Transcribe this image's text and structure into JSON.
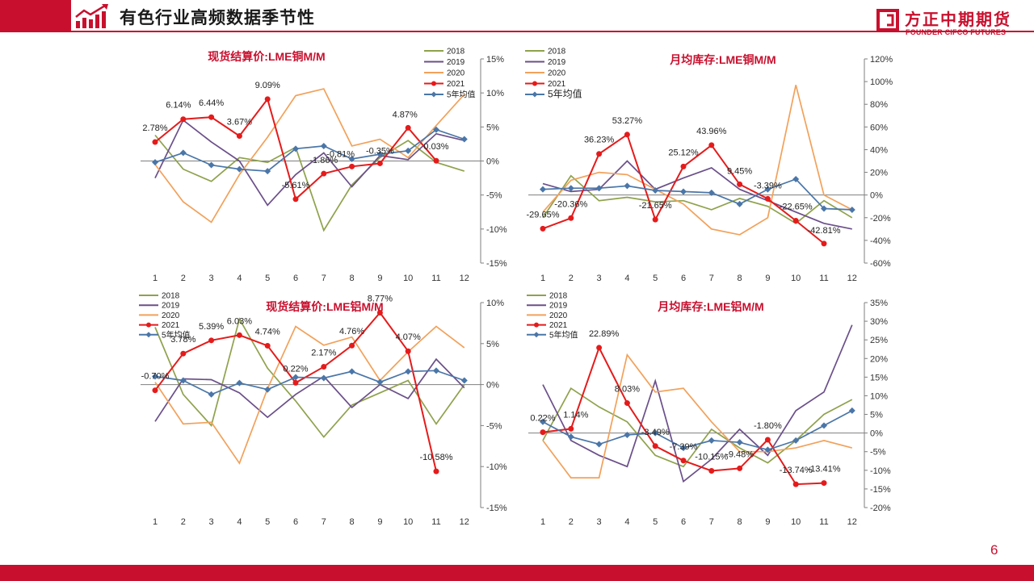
{
  "header": {
    "title": "有色行业高频数据季节性",
    "icon": "trend-arrow-icon"
  },
  "logo": {
    "name_cn": "方正中期期货",
    "name_en": "FOUNDER CIFCO FUTURES",
    "mark": "founder-logo-mark"
  },
  "page_number": "6",
  "colors": {
    "brand": "#c8102e",
    "y2018": "#8ea24c",
    "y2019": "#6b4f8a",
    "y2020": "#f2a15a",
    "y2021": "#e51b1b",
    "avg5": "#4a76a8"
  },
  "chart_data": [
    {
      "type": "line",
      "title": "现货结算价:LME铜M/M",
      "categories": [
        "1",
        "2",
        "3",
        "4",
        "5",
        "6",
        "7",
        "8",
        "9",
        "10",
        "11",
        "12"
      ],
      "ylim": [
        -15,
        15
      ],
      "yticks": [
        15,
        10,
        5,
        0,
        -5,
        -10,
        -15
      ],
      "yticks_text": [
        "15%",
        "10%",
        "5%",
        "0%",
        "-5%",
        "-10%",
        "-15%"
      ],
      "legend": [
        "2018",
        "2019",
        "2020",
        "2021",
        "5年均值"
      ],
      "series": [
        {
          "name": "2018",
          "values": [
            3.8,
            -1.2,
            -3.0,
            0.5,
            -0.2,
            2.0,
            -10.2,
            -3.5,
            0.5,
            3.0,
            -0.2,
            -1.5
          ]
        },
        {
          "name": "2019",
          "values": [
            -2.5,
            6.0,
            2.8,
            0.0,
            -6.5,
            -2.0,
            1.2,
            -3.8,
            0.8,
            0.2,
            4.0,
            3.0
          ]
        },
        {
          "name": "2020",
          "values": [
            -0.5,
            -6.0,
            -9.0,
            -2.0,
            3.5,
            9.6,
            10.6,
            2.2,
            3.2,
            0.5,
            5.2,
            9.8
          ]
        },
        {
          "name": "2021",
          "values": [
            2.78,
            6.14,
            6.44,
            3.67,
            9.09,
            -5.61,
            -1.86,
            -0.81,
            -0.35,
            4.87,
            0.03,
            null
          ]
        },
        {
          "name": "5年均值",
          "values": [
            -0.2,
            1.2,
            -0.6,
            -1.2,
            -1.5,
            1.8,
            2.2,
            0.3,
            1.0,
            1.5,
            4.6,
            3.2
          ]
        }
      ],
      "labels": [
        "2.78%",
        "6.14%",
        "6.44%",
        "3.67%",
        "9.09%",
        "-5.61%",
        "-1.86%",
        "-0.81%",
        "-0.35%",
        "4.87%",
        "0.03%"
      ]
    },
    {
      "type": "line",
      "title": "月均库存:LME铜M/M",
      "categories": [
        "1",
        "2",
        "3",
        "4",
        "5",
        "6",
        "7",
        "8",
        "9",
        "10",
        "11",
        "12"
      ],
      "ylim": [
        -60,
        120
      ],
      "yticks": [
        120,
        100,
        80,
        60,
        40,
        20,
        0,
        -20,
        -40,
        -60
      ],
      "yticks_text": [
        "120%",
        "100%",
        "80%",
        "60%",
        "40%",
        "20%",
        "0%",
        "-20%",
        "-40%",
        "-60%"
      ],
      "legend": [
        "2018",
        "2019",
        "2020",
        "2021",
        "5年均值"
      ],
      "series": [
        {
          "name": "2018",
          "values": [
            -20,
            17,
            -5,
            -2,
            -6,
            -5,
            -13,
            -3,
            -10,
            -25,
            -5,
            -20
          ]
        },
        {
          "name": "2019",
          "values": [
            10,
            3,
            5,
            30,
            5,
            15,
            24,
            5,
            -5,
            -15,
            -25,
            -30
          ]
        },
        {
          "name": "2020",
          "values": [
            -15,
            13,
            20,
            18,
            5,
            -8,
            -30,
            -35,
            -20,
            97,
            0,
            -13
          ]
        },
        {
          "name": "2021",
          "values": [
            -29.65,
            -20.36,
            36.23,
            53.27,
            -21.65,
            25.12,
            43.96,
            9.45,
            -3.39,
            -22.65,
            -42.81,
            null
          ]
        },
        {
          "name": "5年均值",
          "values": [
            5,
            6,
            6,
            8,
            4,
            3,
            2,
            -8,
            5,
            14,
            -12,
            -13
          ]
        }
      ],
      "labels": [
        "-29.65%",
        "-20.36%",
        "36.23%",
        "53.27%",
        "-21.65%",
        "25.12%",
        "43.96%",
        "9.45%",
        "-3.39%",
        "-22.65%",
        "-42.81%"
      ]
    },
    {
      "type": "line",
      "title": "现货结算价:LME铝M/M",
      "categories": [
        "1",
        "2",
        "3",
        "4",
        "5",
        "6",
        "7",
        "8",
        "9",
        "10",
        "11",
        "12"
      ],
      "ylim": [
        -15,
        10
      ],
      "yticks": [
        10,
        5,
        0,
        -5,
        -10,
        -15
      ],
      "yticks_text": [
        "10%",
        "5%",
        "0%",
        "-5%",
        "-10%",
        "-15%"
      ],
      "legend": [
        "2018",
        "2019",
        "2020",
        "2021",
        "5年均值"
      ],
      "series": [
        {
          "name": "2018",
          "values": [
            7.0,
            -1.2,
            -5.0,
            8.0,
            2.0,
            -2.0,
            -6.4,
            -2.5,
            -1.0,
            0.5,
            -4.8,
            0.0
          ]
        },
        {
          "name": "2019",
          "values": [
            -4.5,
            0.7,
            0.6,
            -1.0,
            -4.0,
            -1.2,
            1.0,
            -2.8,
            0.0,
            -1.7,
            3.1,
            -0.4
          ]
        },
        {
          "name": "2020",
          "values": [
            0.3,
            -4.8,
            -4.6,
            -9.6,
            -0.5,
            7.1,
            4.8,
            5.8,
            0.5,
            4.0,
            7.1,
            4.5
          ]
        },
        {
          "name": "2021",
          "values": [
            -0.7,
            3.78,
            5.39,
            6.03,
            4.74,
            0.22,
            2.17,
            4.76,
            8.77,
            4.07,
            -10.58,
            null
          ]
        },
        {
          "name": "5年均值",
          "values": [
            1.0,
            0.5,
            -1.2,
            0.2,
            -0.6,
            0.9,
            0.8,
            1.6,
            0.3,
            1.6,
            1.7,
            0.5
          ]
        }
      ],
      "labels": [
        "-0.70%",
        "3.78%",
        "5.39%",
        "6.03%",
        "4.74%",
        "0.22%",
        "2.17%",
        "4.76%",
        "8.77%",
        "4.07%",
        "-10.58%"
      ]
    },
    {
      "type": "line",
      "title": "月均库存:LME铝M/M",
      "categories": [
        "1",
        "2",
        "3",
        "4",
        "5",
        "6",
        "7",
        "8",
        "9",
        "10",
        "11",
        "12"
      ],
      "ylim": [
        -20,
        35
      ],
      "yticks": [
        35,
        30,
        25,
        20,
        15,
        10,
        5,
        0,
        -5,
        -10,
        -15,
        -20
      ],
      "yticks_text": [
        "35%",
        "30%",
        "25%",
        "20%",
        "15%",
        "10%",
        "5%",
        "0%",
        "-5%",
        "-10%",
        "-15%",
        "-20%"
      ],
      "legend": [
        "2018",
        "2019",
        "2020",
        "2021",
        "5年均值"
      ],
      "series": [
        {
          "name": "2018",
          "values": [
            -2,
            12,
            7,
            3,
            -6,
            -9,
            1,
            -4,
            -8,
            -2,
            5,
            9
          ]
        },
        {
          "name": "2019",
          "values": [
            13,
            -2,
            -6,
            -9,
            14,
            -13,
            -7,
            1,
            -6,
            6,
            11,
            29
          ]
        },
        {
          "name": "2020",
          "values": [
            -2,
            -12,
            -12,
            21,
            11,
            12,
            3,
            -5,
            -5,
            -4,
            -2,
            -4
          ]
        },
        {
          "name": "2021",
          "values": [
            0.22,
            1.14,
            22.89,
            8.03,
            -3.49,
            -7.39,
            -10.15,
            -9.48,
            -1.8,
            -13.74,
            -13.41,
            null
          ]
        },
        {
          "name": "5年均值",
          "values": [
            3,
            -1,
            -3,
            -0.5,
            0,
            -4,
            -2,
            -2.5,
            -4.5,
            -2,
            2,
            6
          ]
        }
      ],
      "labels": [
        "0.22%",
        "1.14%",
        "22.89%",
        "8.03%",
        "-3.49%",
        "-7.39%",
        "-10.15%",
        "-9.48%",
        "-1.80%",
        "-13.74%",
        "-13.41%"
      ]
    }
  ]
}
